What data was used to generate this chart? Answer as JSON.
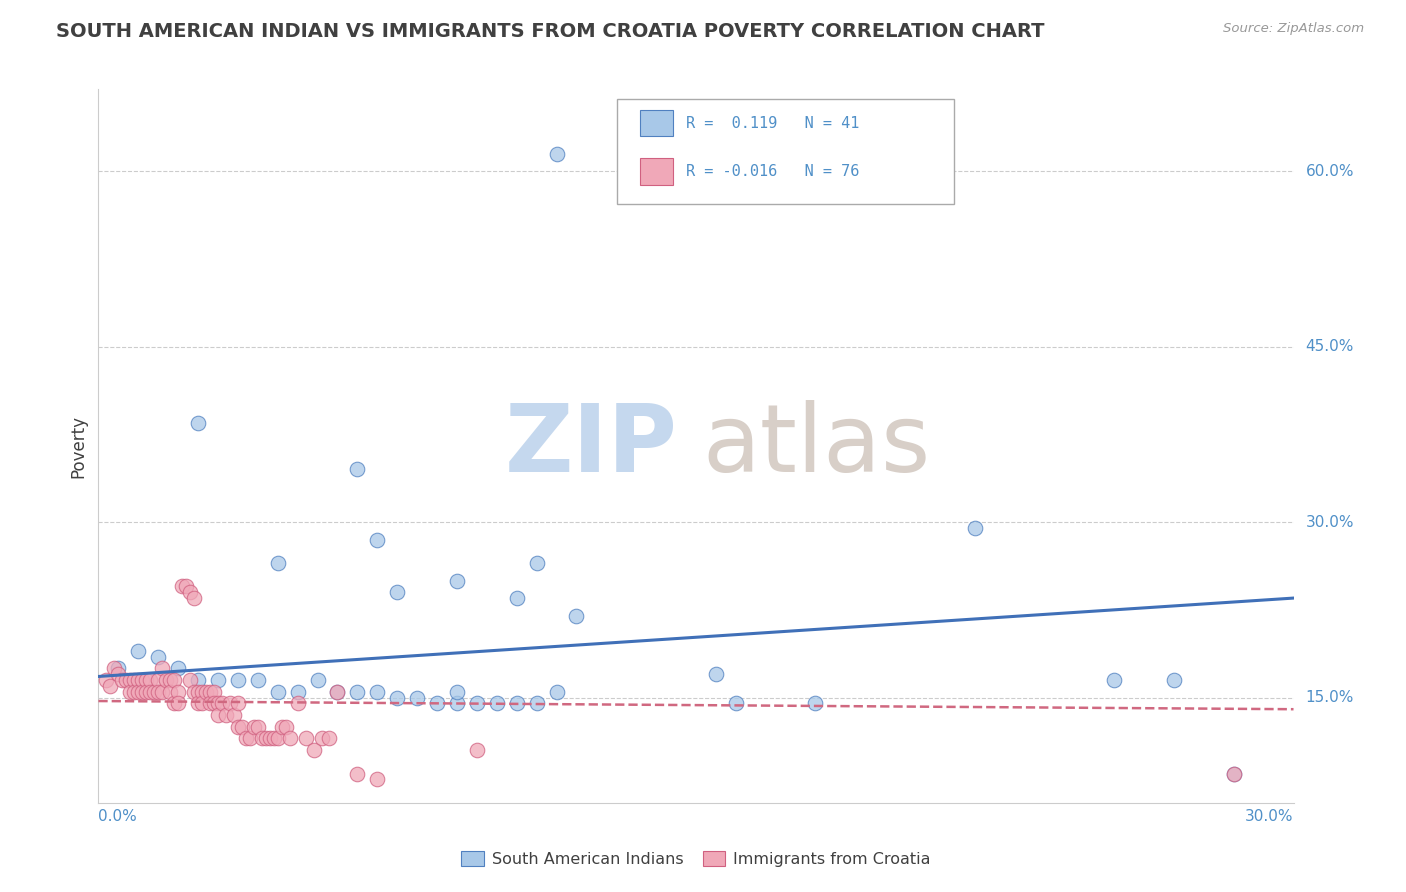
{
  "title": "SOUTH AMERICAN INDIAN VS IMMIGRANTS FROM CROATIA POVERTY CORRELATION CHART",
  "source_text": "Source: ZipAtlas.com",
  "ylabel": "Poverty",
  "ytick_values": [
    0.15,
    0.3,
    0.45,
    0.6
  ],
  "ytick_labels": [
    "15.0%",
    "30.0%",
    "45.0%",
    "60.0%"
  ],
  "xmin": 0.0,
  "xmax": 0.3,
  "ymin": 0.06,
  "ymax": 0.67,
  "blue_scatter_x": [
    0.115,
    0.025,
    0.065,
    0.07,
    0.045,
    0.11,
    0.09,
    0.075,
    0.105,
    0.12,
    0.005,
    0.01,
    0.015,
    0.02,
    0.025,
    0.03,
    0.035,
    0.04,
    0.045,
    0.05,
    0.055,
    0.06,
    0.065,
    0.07,
    0.075,
    0.08,
    0.085,
    0.09,
    0.095,
    0.1,
    0.105,
    0.11,
    0.155,
    0.16,
    0.18,
    0.22,
    0.255,
    0.27,
    0.285,
    0.115,
    0.09
  ],
  "blue_scatter_y": [
    0.615,
    0.385,
    0.345,
    0.285,
    0.265,
    0.265,
    0.25,
    0.24,
    0.235,
    0.22,
    0.175,
    0.19,
    0.185,
    0.175,
    0.165,
    0.165,
    0.165,
    0.165,
    0.155,
    0.155,
    0.165,
    0.155,
    0.155,
    0.155,
    0.15,
    0.15,
    0.145,
    0.145,
    0.145,
    0.145,
    0.145,
    0.145,
    0.17,
    0.145,
    0.145,
    0.295,
    0.165,
    0.165,
    0.085,
    0.155,
    0.155
  ],
  "pink_scatter_x": [
    0.002,
    0.003,
    0.004,
    0.005,
    0.006,
    0.007,
    0.008,
    0.008,
    0.009,
    0.009,
    0.01,
    0.01,
    0.011,
    0.011,
    0.012,
    0.012,
    0.013,
    0.013,
    0.014,
    0.015,
    0.015,
    0.016,
    0.016,
    0.017,
    0.018,
    0.018,
    0.019,
    0.019,
    0.02,
    0.02,
    0.021,
    0.022,
    0.023,
    0.023,
    0.024,
    0.024,
    0.025,
    0.025,
    0.026,
    0.026,
    0.027,
    0.028,
    0.028,
    0.029,
    0.029,
    0.03,
    0.03,
    0.031,
    0.032,
    0.033,
    0.034,
    0.035,
    0.035,
    0.036,
    0.037,
    0.038,
    0.039,
    0.04,
    0.041,
    0.042,
    0.043,
    0.044,
    0.045,
    0.046,
    0.047,
    0.048,
    0.05,
    0.052,
    0.054,
    0.056,
    0.058,
    0.06,
    0.065,
    0.07,
    0.095,
    0.285
  ],
  "pink_scatter_y": [
    0.165,
    0.16,
    0.175,
    0.17,
    0.165,
    0.165,
    0.165,
    0.155,
    0.165,
    0.155,
    0.165,
    0.155,
    0.165,
    0.155,
    0.165,
    0.155,
    0.165,
    0.155,
    0.155,
    0.165,
    0.155,
    0.175,
    0.155,
    0.165,
    0.165,
    0.155,
    0.165,
    0.145,
    0.155,
    0.145,
    0.245,
    0.245,
    0.24,
    0.165,
    0.235,
    0.155,
    0.155,
    0.145,
    0.155,
    0.145,
    0.155,
    0.155,
    0.145,
    0.155,
    0.145,
    0.145,
    0.135,
    0.145,
    0.135,
    0.145,
    0.135,
    0.145,
    0.125,
    0.125,
    0.115,
    0.115,
    0.125,
    0.125,
    0.115,
    0.115,
    0.115,
    0.115,
    0.115,
    0.125,
    0.125,
    0.115,
    0.145,
    0.115,
    0.105,
    0.115,
    0.115,
    0.155,
    0.085,
    0.08,
    0.105,
    0.085
  ],
  "blue_color": "#a8c8e8",
  "pink_color": "#f0a8b8",
  "blue_edge_color": "#5080c0",
  "pink_edge_color": "#d06080",
  "blue_line_color": "#4070b8",
  "pink_line_color": "#d06880",
  "grid_color": "#cccccc",
  "title_color": "#404040",
  "axis_label_color": "#5090c8",
  "source_color": "#999999",
  "blue_trend_x0": 0.0,
  "blue_trend_y0": 0.168,
  "blue_trend_x1": 0.3,
  "blue_trend_y1": 0.235,
  "pink_trend_x0": 0.0,
  "pink_trend_y0": 0.147,
  "pink_trend_x1": 0.3,
  "pink_trend_y1": 0.14
}
